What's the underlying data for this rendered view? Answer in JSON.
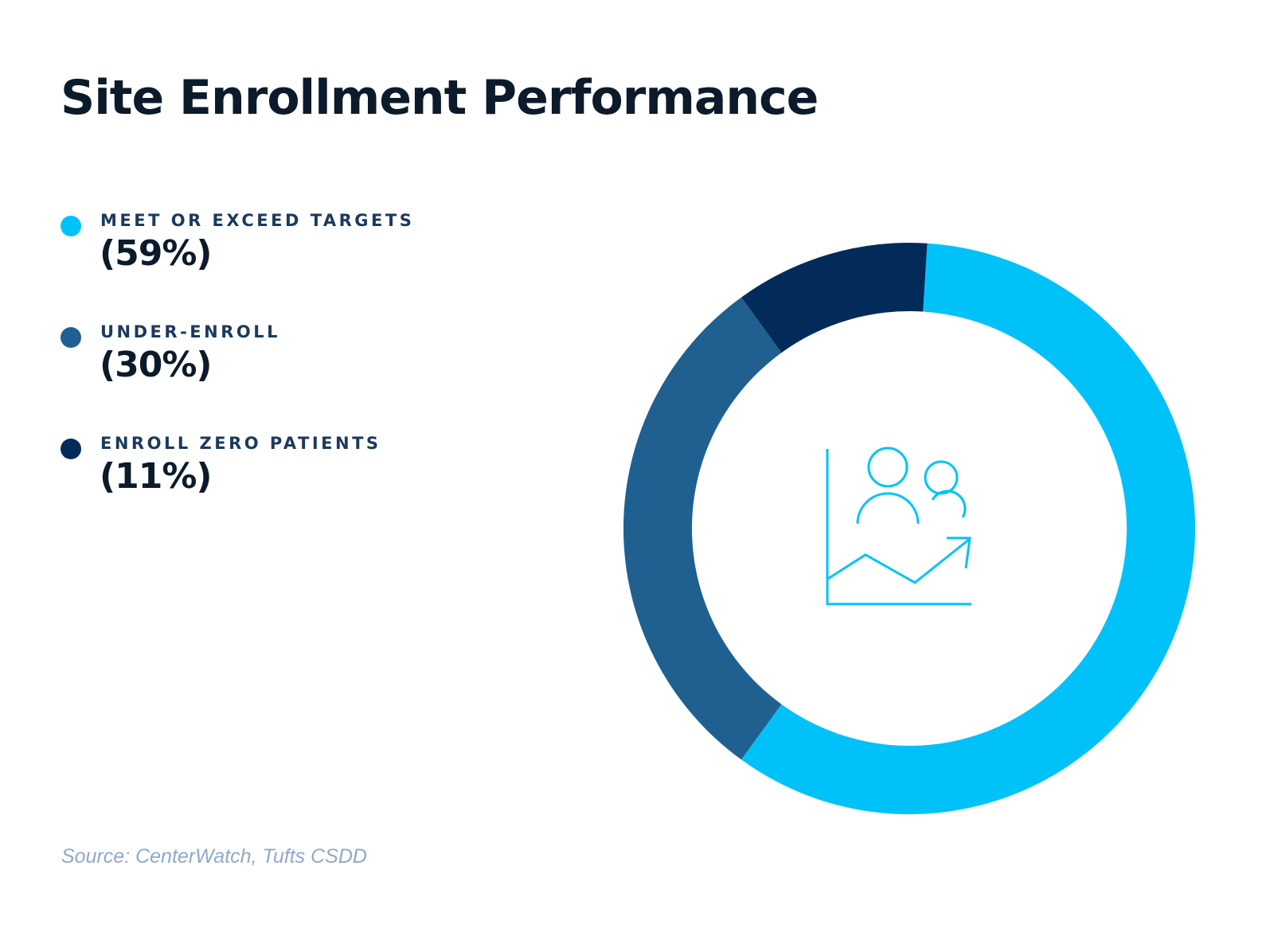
{
  "chart_data": {
    "type": "pie",
    "subtype": "donut",
    "title": "Site Enrollment Performance",
    "categories": [
      "MEET OR EXCEED TARGETS",
      "UNDER-ENROLL",
      "ENROLL ZERO PATIENTS"
    ],
    "values": [
      59,
      30,
      11
    ],
    "value_labels": [
      "(59%)",
      "(30%)",
      "(11%)"
    ],
    "colors": [
      "#00c2f9",
      "#1f6090",
      "#022b5a"
    ],
    "legend_placement": "left",
    "center_icon": "people-growth-chart-icon",
    "source": "Source: CenterWatch, Tufts CSDD"
  }
}
